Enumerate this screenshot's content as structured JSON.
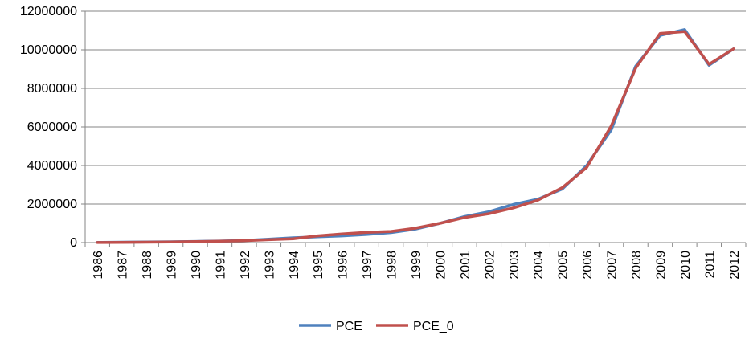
{
  "chart_data": {
    "type": "line",
    "title": "",
    "xlabel": "",
    "ylabel": "",
    "categories": [
      "1986",
      "1987",
      "1988",
      "1989",
      "1990",
      "1991",
      "1992",
      "1993",
      "1994",
      "1995",
      "1996",
      "1997",
      "1998",
      "1999",
      "2000",
      "2001",
      "2002",
      "2003",
      "2004",
      "2005",
      "2006",
      "2007",
      "2008",
      "2009",
      "2010",
      "2011",
      "2012"
    ],
    "ylim": [
      0,
      12000000
    ],
    "yticks": [
      0,
      2000000,
      4000000,
      6000000,
      8000000,
      10000000,
      12000000
    ],
    "ytick_labels": [
      "0",
      "2000000",
      "4000000",
      "6000000",
      "8000000",
      "10000000",
      "12000000"
    ],
    "grid": "horizontal",
    "legend_position": "bottom",
    "series": [
      {
        "name": "PCE",
        "color": "#4F81BD",
        "values": [
          10000,
          20000,
          30000,
          40000,
          60000,
          80000,
          110000,
          180000,
          250000,
          300000,
          350000,
          420000,
          520000,
          700000,
          1000000,
          1350000,
          1600000,
          1980000,
          2250000,
          2780000,
          4000000,
          5850000,
          9150000,
          10750000,
          11050000,
          9200000,
          10050000
        ]
      },
      {
        "name": "PCE_0",
        "color": "#C0504D",
        "values": [
          5000,
          10000,
          20000,
          30000,
          50000,
          70000,
          100000,
          150000,
          200000,
          350000,
          450000,
          530000,
          580000,
          750000,
          1000000,
          1300000,
          1500000,
          1800000,
          2200000,
          2850000,
          3900000,
          6050000,
          9050000,
          10850000,
          10950000,
          9250000,
          10050000
        ]
      }
    ]
  }
}
